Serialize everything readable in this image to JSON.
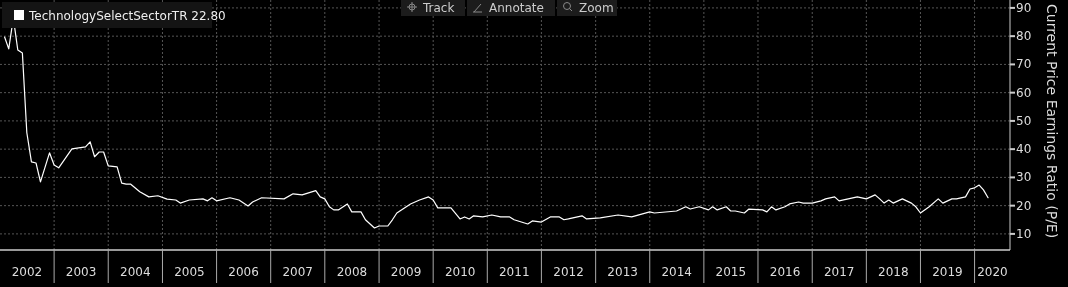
{
  "chart_data": {
    "type": "line",
    "ylabel": "Current Price Earnings Ratio (P/E)",
    "annotations": [
      "22.80",
      "Track",
      "Annotate",
      "Zoom"
    ],
    "xlim": [
      "2002-01-01",
      "2020-08-27"
    ],
    "xticks": [
      {
        "value": "2002-07-02",
        "label": "2002"
      },
      {
        "value": "2003-01-01",
        "label": null
      },
      {
        "value": "2003-07-02",
        "label": "2003"
      },
      {
        "value": "2004-01-01",
        "label": null
      },
      {
        "value": "2004-07-02",
        "label": "2004"
      },
      {
        "value": "2005-01-01",
        "label": null
      },
      {
        "value": "2005-07-02",
        "label": "2005"
      },
      {
        "value": "2006-01-01",
        "label": null
      },
      {
        "value": "2006-07-02",
        "label": "2006"
      },
      {
        "value": "2007-01-01",
        "label": null
      },
      {
        "value": "2007-07-02",
        "label": "2007"
      },
      {
        "value": "2008-01-01",
        "label": null
      },
      {
        "value": "2008-07-02",
        "label": "2008"
      },
      {
        "value": "2009-01-01",
        "label": null
      },
      {
        "value": "2009-07-02",
        "label": "2009"
      },
      {
        "value": "2010-01-01",
        "label": null
      },
      {
        "value": "2010-07-02",
        "label": "2010"
      },
      {
        "value": "2011-01-01",
        "label": null
      },
      {
        "value": "2011-07-02",
        "label": "2011"
      },
      {
        "value": "2012-01-01",
        "label": null
      },
      {
        "value": "2012-07-02",
        "label": "2012"
      },
      {
        "value": "2013-01-01",
        "label": null
      },
      {
        "value": "2013-07-02",
        "label": "2013"
      },
      {
        "value": "2014-01-01",
        "label": null
      },
      {
        "value": "2014-07-02",
        "label": "2014"
      },
      {
        "value": "2015-01-01",
        "label": null
      },
      {
        "value": "2015-07-02",
        "label": "2015"
      },
      {
        "value": "2016-01-01",
        "label": null
      },
      {
        "value": "2016-07-02",
        "label": "2016"
      },
      {
        "value": "2017-01-01",
        "label": null
      },
      {
        "value": "2017-07-02",
        "label": "2017"
      },
      {
        "value": "2018-01-01",
        "label": null
      },
      {
        "value": "2018-07-02",
        "label": "2018"
      },
      {
        "value": "2019-01-01",
        "label": null
      },
      {
        "value": "2019-07-02",
        "label": "2019"
      },
      {
        "value": "2020-01-01",
        "label": null
      },
      {
        "value": "2020-05-01",
        "label": "2020"
      }
    ],
    "ylim": [
      4.3,
      92.8
    ],
    "yticks": [
      10,
      20,
      30,
      40,
      50,
      60,
      70,
      80,
      90
    ],
    "grid": true,
    "legend": "top left",
    "line_style": "solid",
    "marker": "none",
    "series": [
      {
        "name": "TechnologySelectSectorTR",
        "color": "#ffffff",
        "x": [
          "2002-02",
          "2002-03",
          "2002-04",
          "2002-05",
          "2002-06",
          "2002-07",
          "2002-08",
          "2002-09",
          "2002-10",
          "2002-12",
          "2003-01",
          "2003-02",
          "2003-05",
          "2003-08",
          "2003-09",
          "2003-10",
          "2003-11",
          "2003-12",
          "2004-01",
          "2004-03",
          "2004-04",
          "2004-05",
          "2004-06",
          "2004-08",
          "2004-10",
          "2004-12",
          "2005-02",
          "2005-04",
          "2005-05",
          "2005-07",
          "2005-10",
          "2005-11",
          "2005-12",
          "2006-01",
          "2006-04",
          "2006-06",
          "2006-08",
          "2006-09",
          "2006-11",
          "2007-04",
          "2007-06",
          "2007-08",
          "2007-11",
          "2007-12",
          "2008-01",
          "2008-02",
          "2008-03",
          "2008-04",
          "2008-06",
          "2008-07",
          "2008-09",
          "2008-10",
          "2008-12",
          "2009-01",
          "2009-03",
          "2009-04",
          "2009-05",
          "2009-08",
          "2009-10",
          "2009-12",
          "2010-01",
          "2010-02",
          "2010-05",
          "2010-07",
          "2010-08",
          "2010-09",
          "2010-10",
          "2010-12",
          "2011-02",
          "2011-04",
          "2011-06",
          "2011-07",
          "2011-10",
          "2011-11",
          "2012-01",
          "2012-03",
          "2012-05",
          "2012-06",
          "2012-07",
          "2012-10",
          "2012-11",
          "2013-02",
          "2013-06",
          "2013-09",
          "2014-01",
          "2014-02",
          "2014-07",
          "2014-09",
          "2014-10",
          "2014-12",
          "2015-02",
          "2015-03",
          "2015-04",
          "2015-06",
          "2015-07",
          "2015-08",
          "2015-10",
          "2015-11",
          "2016-02",
          "2016-03",
          "2016-04",
          "2016-05",
          "2016-07",
          "2016-08",
          "2016-10",
          "2016-11",
          "2017-01",
          "2017-03",
          "2017-04",
          "2017-06",
          "2017-07",
          "2017-09",
          "2017-11",
          "2018-01",
          "2018-03",
          "2018-04",
          "2018-05",
          "2018-06",
          "2018-07",
          "2018-09",
          "2018-11",
          "2018-12",
          "2019-01",
          "2019-03",
          "2019-05",
          "2019-06",
          "2019-08",
          "2019-09",
          "2019-11",
          "2019-12",
          "2020-01",
          "2020-02",
          "2020-03",
          "2020-04"
        ],
        "values": [
          79.7,
          75.5,
          86.5,
          75.1,
          74,
          45.8,
          35.5,
          35.1,
          28.4,
          38.7,
          34.4,
          33.4,
          40.1,
          40.8,
          42.6,
          37.3,
          39,
          39,
          34.1,
          33.7,
          28,
          27.6,
          27.6,
          24.9,
          23.1,
          23.5,
          22.3,
          22,
          20.9,
          22,
          22.4,
          21.7,
          22.8,
          21.7,
          22.8,
          22,
          19.9,
          21.3,
          22.8,
          22.4,
          24.2,
          23.8,
          25.3,
          23.1,
          22.4,
          19.6,
          18.5,
          18.5,
          20.6,
          17.8,
          17.8,
          15,
          12.1,
          12.8,
          12.8,
          15,
          17.4,
          20.6,
          22,
          23.1,
          22,
          19.2,
          19.2,
          15.3,
          16,
          15.3,
          16.4,
          16,
          16.7,
          16,
          16,
          15,
          13.5,
          14.6,
          14.2,
          16,
          16,
          15,
          15.3,
          16.4,
          15.3,
          15.7,
          16.7,
          16,
          17.8,
          17.4,
          18.1,
          19.6,
          18.8,
          19.6,
          18.5,
          19.6,
          18.5,
          19.6,
          18.1,
          18.1,
          17.4,
          18.8,
          18.5,
          17.8,
          19.6,
          18.5,
          19.6,
          20.6,
          21.3,
          20.9,
          20.9,
          21.7,
          22.4,
          23.1,
          21.7,
          22.4,
          23.1,
          22.4,
          23.8,
          22.4,
          20.9,
          22,
          20.9,
          22.4,
          20.9,
          19.6,
          17.4,
          19.6,
          22.4,
          20.9,
          22.4,
          22.4,
          23.1,
          25.9,
          26.3,
          27.3,
          25.6,
          22.8
        ]
      }
    ]
  }
}
